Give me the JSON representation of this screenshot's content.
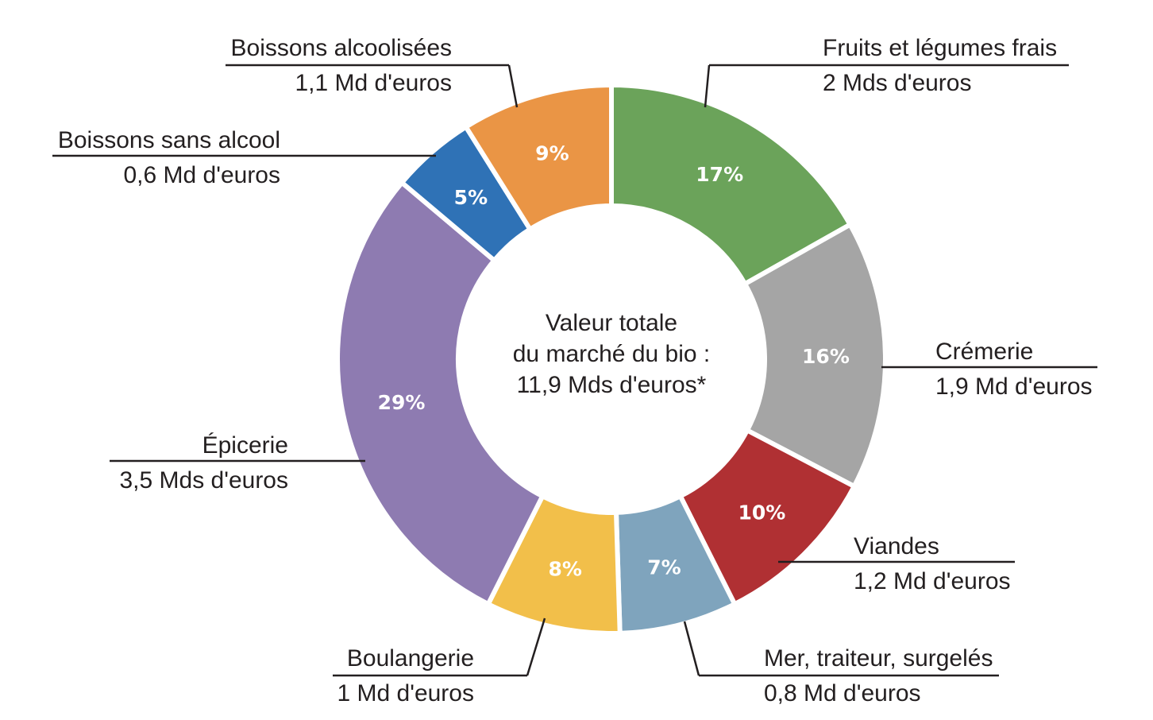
{
  "chart_data": {
    "type": "pie",
    "donut": true,
    "center_text": [
      "Valeur totale",
      "du marché du bio :",
      "11,9 Mds d'euros*"
    ],
    "slices": [
      {
        "name": "Fruits et légumes frais",
        "value_label": "2 Mds d'euros",
        "percent": 17,
        "percent_label": "17%",
        "color": "#6ba35a"
      },
      {
        "name": "Crémerie",
        "value_label": "1,9 Md d'euros",
        "percent": 16,
        "percent_label": "16%",
        "color": "#a5a5a5"
      },
      {
        "name": "Viandes",
        "value_label": "1,2 Md d'euros",
        "percent": 10,
        "percent_label": "10%",
        "color": "#b03033"
      },
      {
        "name": "Mer, traiteur, surgelés",
        "value_label": "0,8 Md d'euros",
        "percent": 7,
        "percent_label": "7%",
        "color": "#7fa4bd"
      },
      {
        "name": "Boulangerie",
        "value_label": "1 Md d'euros",
        "percent": 8,
        "percent_label": "8%",
        "color": "#f2bf4a"
      },
      {
        "name": "Épicerie",
        "value_label": "3,5 Mds d'euros",
        "percent": 29,
        "percent_label": "29%",
        "color": "#8e7bb1"
      },
      {
        "name": "Boissons sans alcool",
        "value_label": "0,6 Md d'euros",
        "percent": 5,
        "percent_label": "5%",
        "color": "#2f72b6"
      },
      {
        "name": "Boissons alcoolisées",
        "value_label": "1,1 Md d'euros",
        "percent": 9,
        "percent_label": "9%",
        "color": "#ea9545"
      }
    ]
  }
}
